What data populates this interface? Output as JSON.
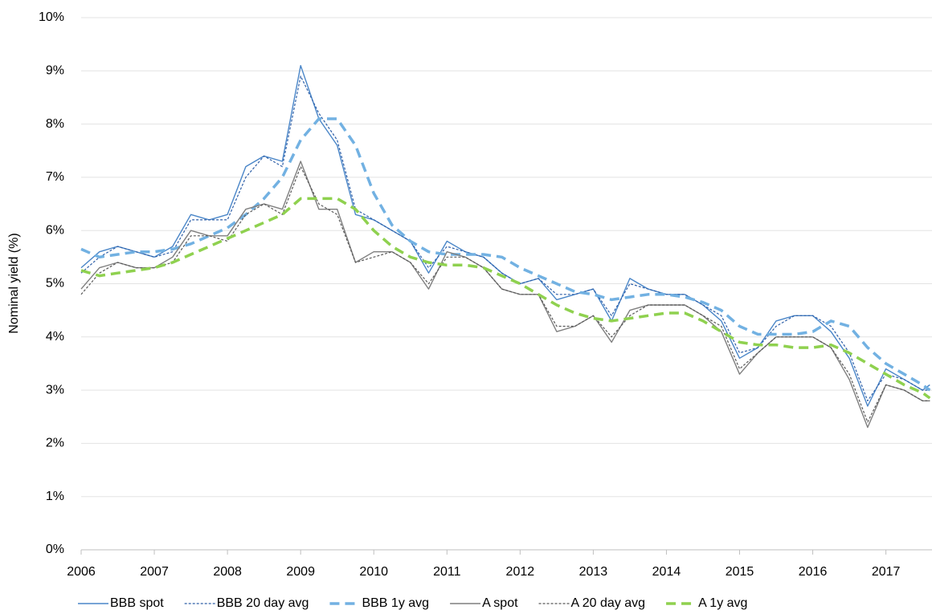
{
  "chart_data": {
    "type": "line",
    "y_label": "Nominal yield (%)",
    "x": [
      2006,
      2006.25,
      2006.5,
      2006.75,
      2007,
      2007.25,
      2007.5,
      2007.75,
      2008,
      2008.25,
      2008.5,
      2008.75,
      2009,
      2009.25,
      2009.5,
      2009.75,
      2010,
      2010.25,
      2010.5,
      2010.75,
      2011,
      2011.25,
      2011.5,
      2011.75,
      2012,
      2012.25,
      2012.5,
      2012.75,
      2013,
      2013.25,
      2013.5,
      2013.75,
      2014,
      2014.25,
      2014.5,
      2014.75,
      2015,
      2015.25,
      2015.5,
      2015.75,
      2016,
      2016.25,
      2016.5,
      2016.75,
      2017,
      2017.25,
      2017.5,
      2017.6
    ],
    "xlim": [
      2006,
      2017.63
    ],
    "xticks": [
      2006,
      2007,
      2008,
      2009,
      2010,
      2011,
      2012,
      2013,
      2014,
      2015,
      2016,
      2017
    ],
    "ylim": [
      0,
      10
    ],
    "yticks": [
      {
        "value": 0,
        "label": "0%"
      },
      {
        "value": 1,
        "label": "1%"
      },
      {
        "value": 2,
        "label": "2%"
      },
      {
        "value": 3,
        "label": "3%"
      },
      {
        "value": 4,
        "label": "4%"
      },
      {
        "value": 5,
        "label": "5%"
      },
      {
        "value": 6,
        "label": "6%"
      },
      {
        "value": 7,
        "label": "7%"
      },
      {
        "value": 8,
        "label": "8%"
      },
      {
        "value": 9,
        "label": "9%"
      },
      {
        "value": 10,
        "label": "10%"
      }
    ],
    "grid": true,
    "legend": "bottom",
    "series": [
      {
        "name": "BBB spot",
        "color": "#4a86c8",
        "style": "solid",
        "values": [
          5.3,
          5.6,
          5.7,
          5.6,
          5.5,
          5.7,
          6.3,
          6.2,
          6.3,
          7.2,
          7.4,
          7.3,
          9.1,
          8.1,
          7.6,
          6.3,
          6.2,
          6.0,
          5.8,
          5.2,
          5.8,
          5.6,
          5.5,
          5.2,
          5.0,
          5.1,
          4.7,
          4.8,
          4.9,
          4.3,
          5.1,
          4.9,
          4.8,
          4.8,
          4.6,
          4.3,
          3.6,
          3.8,
          4.3,
          4.4,
          4.4,
          4.1,
          3.6,
          2.7,
          3.4,
          3.2,
          3.0,
          3.1
        ]
      },
      {
        "name": "BBB 20 day avg",
        "color": "#2e5fa8",
        "style": "dotted",
        "values": [
          5.2,
          5.5,
          5.7,
          5.6,
          5.5,
          5.6,
          6.2,
          6.2,
          6.2,
          7.0,
          7.4,
          7.2,
          8.9,
          8.2,
          7.7,
          6.4,
          6.2,
          6.0,
          5.8,
          5.3,
          5.7,
          5.6,
          5.5,
          5.2,
          5.0,
          5.1,
          4.8,
          4.8,
          4.9,
          4.4,
          5.0,
          4.9,
          4.8,
          4.8,
          4.6,
          4.4,
          3.7,
          3.8,
          4.2,
          4.4,
          4.4,
          4.2,
          3.7,
          2.8,
          3.3,
          3.2,
          3.0,
          3.0
        ]
      },
      {
        "name": "BBB 1y avg",
        "color": "#72b1e2",
        "style": "dashed",
        "values": [
          5.65,
          5.5,
          5.55,
          5.6,
          5.6,
          5.65,
          5.75,
          5.9,
          6.05,
          6.3,
          6.6,
          7.0,
          7.7,
          8.1,
          8.1,
          7.6,
          6.7,
          6.1,
          5.8,
          5.6,
          5.55,
          5.55,
          5.55,
          5.5,
          5.3,
          5.15,
          5.0,
          4.85,
          4.8,
          4.7,
          4.75,
          4.8,
          4.8,
          4.75,
          4.65,
          4.5,
          4.2,
          4.05,
          4.05,
          4.05,
          4.1,
          4.3,
          4.2,
          3.8,
          3.5,
          3.3,
          3.1,
          3.0
        ]
      },
      {
        "name": "A spot",
        "color": "#7f7f7f",
        "style": "solid",
        "values": [
          4.9,
          5.3,
          5.4,
          5.3,
          5.3,
          5.5,
          6.0,
          5.9,
          5.9,
          6.4,
          6.5,
          6.4,
          7.3,
          6.4,
          6.4,
          5.4,
          5.6,
          5.6,
          5.4,
          4.9,
          5.6,
          5.5,
          5.3,
          4.9,
          4.8,
          4.8,
          4.1,
          4.2,
          4.4,
          3.9,
          4.5,
          4.6,
          4.6,
          4.6,
          4.4,
          4.1,
          3.3,
          3.7,
          4.0,
          4.0,
          4.0,
          3.8,
          3.2,
          2.3,
          3.1,
          3.0,
          2.8,
          2.8
        ]
      },
      {
        "name": "A 20 day avg",
        "color": "#595959",
        "style": "dotted",
        "values": [
          4.8,
          5.2,
          5.4,
          5.3,
          5.3,
          5.4,
          5.9,
          5.9,
          5.8,
          6.3,
          6.5,
          6.3,
          7.2,
          6.5,
          6.3,
          5.4,
          5.5,
          5.6,
          5.4,
          5.0,
          5.5,
          5.5,
          5.3,
          4.9,
          4.8,
          4.8,
          4.2,
          4.2,
          4.4,
          4.0,
          4.4,
          4.6,
          4.6,
          4.6,
          4.4,
          4.2,
          3.4,
          3.7,
          4.0,
          4.0,
          4.0,
          3.8,
          3.3,
          2.4,
          3.1,
          3.0,
          2.8,
          2.8
        ]
      },
      {
        "name": "A 1y avg",
        "color": "#8fd14f",
        "style": "dashed",
        "values": [
          5.25,
          5.15,
          5.2,
          5.25,
          5.3,
          5.4,
          5.55,
          5.7,
          5.85,
          6.0,
          6.15,
          6.3,
          6.6,
          6.6,
          6.6,
          6.4,
          6.0,
          5.7,
          5.5,
          5.4,
          5.35,
          5.35,
          5.3,
          5.15,
          5.0,
          4.8,
          4.6,
          4.45,
          4.35,
          4.3,
          4.35,
          4.4,
          4.45,
          4.45,
          4.3,
          4.1,
          3.9,
          3.85,
          3.85,
          3.8,
          3.8,
          3.85,
          3.7,
          3.5,
          3.3,
          3.1,
          2.95,
          2.85
        ]
      }
    ]
  }
}
